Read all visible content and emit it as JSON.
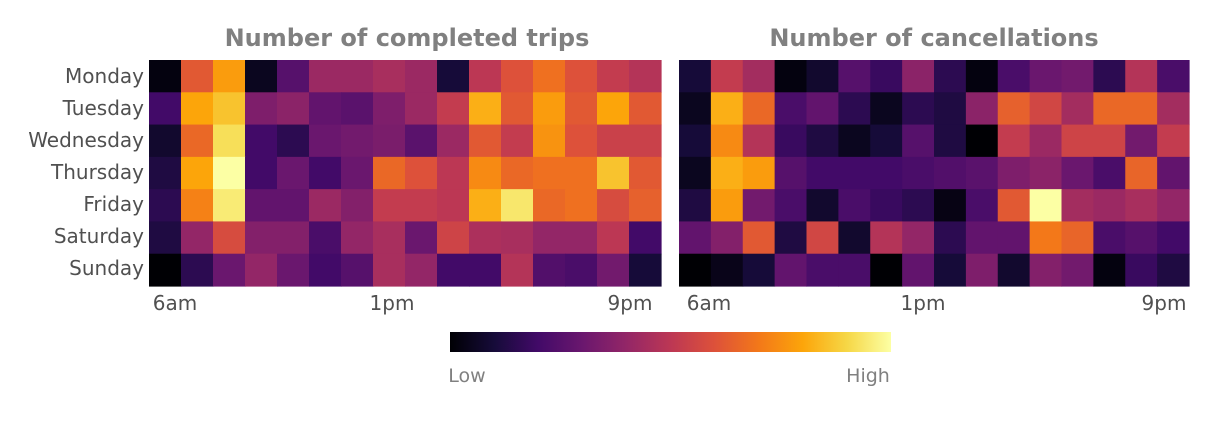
{
  "chart_data": [
    {
      "type": "heatmap",
      "title": "Number of completed trips",
      "rows": [
        "Monday",
        "Tuesday",
        "Wednesday",
        "Thursday",
        "Friday",
        "Saturday",
        "Sunday"
      ],
      "x_tick_labels": [
        "6am",
        "1pm",
        "9pm"
      ],
      "values": [
        [
          0.02,
          0.62,
          0.78,
          0.05,
          0.25,
          0.42,
          0.42,
          0.45,
          0.42,
          0.1,
          0.5,
          0.6,
          0.68,
          0.6,
          0.52,
          0.48
        ],
        [
          0.2,
          0.8,
          0.86,
          0.35,
          0.38,
          0.28,
          0.26,
          0.35,
          0.42,
          0.52,
          0.82,
          0.62,
          0.78,
          0.62,
          0.8,
          0.62
        ],
        [
          0.08,
          0.66,
          0.92,
          0.2,
          0.15,
          0.3,
          0.32,
          0.34,
          0.26,
          0.42,
          0.62,
          0.52,
          0.76,
          0.6,
          0.54,
          0.54
        ],
        [
          0.12,
          0.8,
          1.0,
          0.2,
          0.3,
          0.2,
          0.3,
          0.66,
          0.6,
          0.5,
          0.74,
          0.66,
          0.68,
          0.68,
          0.86,
          0.62
        ],
        [
          0.15,
          0.72,
          0.95,
          0.28,
          0.28,
          0.42,
          0.36,
          0.52,
          0.52,
          0.5,
          0.82,
          0.94,
          0.66,
          0.68,
          0.58,
          0.64
        ],
        [
          0.12,
          0.4,
          0.58,
          0.36,
          0.36,
          0.22,
          0.4,
          0.45,
          0.3,
          0.55,
          0.46,
          0.45,
          0.4,
          0.4,
          0.5,
          0.2
        ],
        [
          0.0,
          0.15,
          0.3,
          0.4,
          0.3,
          0.2,
          0.25,
          0.45,
          0.4,
          0.2,
          0.2,
          0.48,
          0.24,
          0.22,
          0.32,
          0.1
        ]
      ]
    },
    {
      "type": "heatmap",
      "title": "Number of cancellations",
      "rows": [
        "Monday",
        "Tuesday",
        "Wednesday",
        "Thursday",
        "Friday",
        "Saturday",
        "Sunday"
      ],
      "x_tick_labels": [
        "6am",
        "1pm",
        "9pm"
      ],
      "values": [
        [
          0.1,
          0.52,
          0.44,
          0.02,
          0.08,
          0.25,
          0.18,
          0.38,
          0.15,
          0.02,
          0.22,
          0.3,
          0.32,
          0.15,
          0.48,
          0.22
        ],
        [
          0.05,
          0.82,
          0.66,
          0.22,
          0.28,
          0.15,
          0.05,
          0.15,
          0.12,
          0.38,
          0.64,
          0.56,
          0.44,
          0.66,
          0.66,
          0.44
        ],
        [
          0.1,
          0.74,
          0.48,
          0.18,
          0.12,
          0.05,
          0.1,
          0.25,
          0.12,
          0.0,
          0.52,
          0.42,
          0.55,
          0.55,
          0.32,
          0.52
        ],
        [
          0.05,
          0.82,
          0.78,
          0.25,
          0.2,
          0.2,
          0.2,
          0.22,
          0.24,
          0.26,
          0.35,
          0.38,
          0.3,
          0.22,
          0.65,
          0.28
        ],
        [
          0.12,
          0.78,
          0.32,
          0.22,
          0.08,
          0.22,
          0.18,
          0.15,
          0.03,
          0.22,
          0.62,
          1.0,
          0.44,
          0.42,
          0.45,
          0.4
        ],
        [
          0.28,
          0.36,
          0.62,
          0.12,
          0.56,
          0.08,
          0.48,
          0.4,
          0.15,
          0.28,
          0.28,
          0.7,
          0.65,
          0.22,
          0.25,
          0.2
        ],
        [
          0.0,
          0.04,
          0.1,
          0.28,
          0.22,
          0.22,
          0.0,
          0.28,
          0.1,
          0.35,
          0.08,
          0.36,
          0.32,
          0.02,
          0.18,
          0.12
        ]
      ]
    }
  ],
  "colorbar": {
    "low_label": "Low",
    "high_label": "High"
  }
}
